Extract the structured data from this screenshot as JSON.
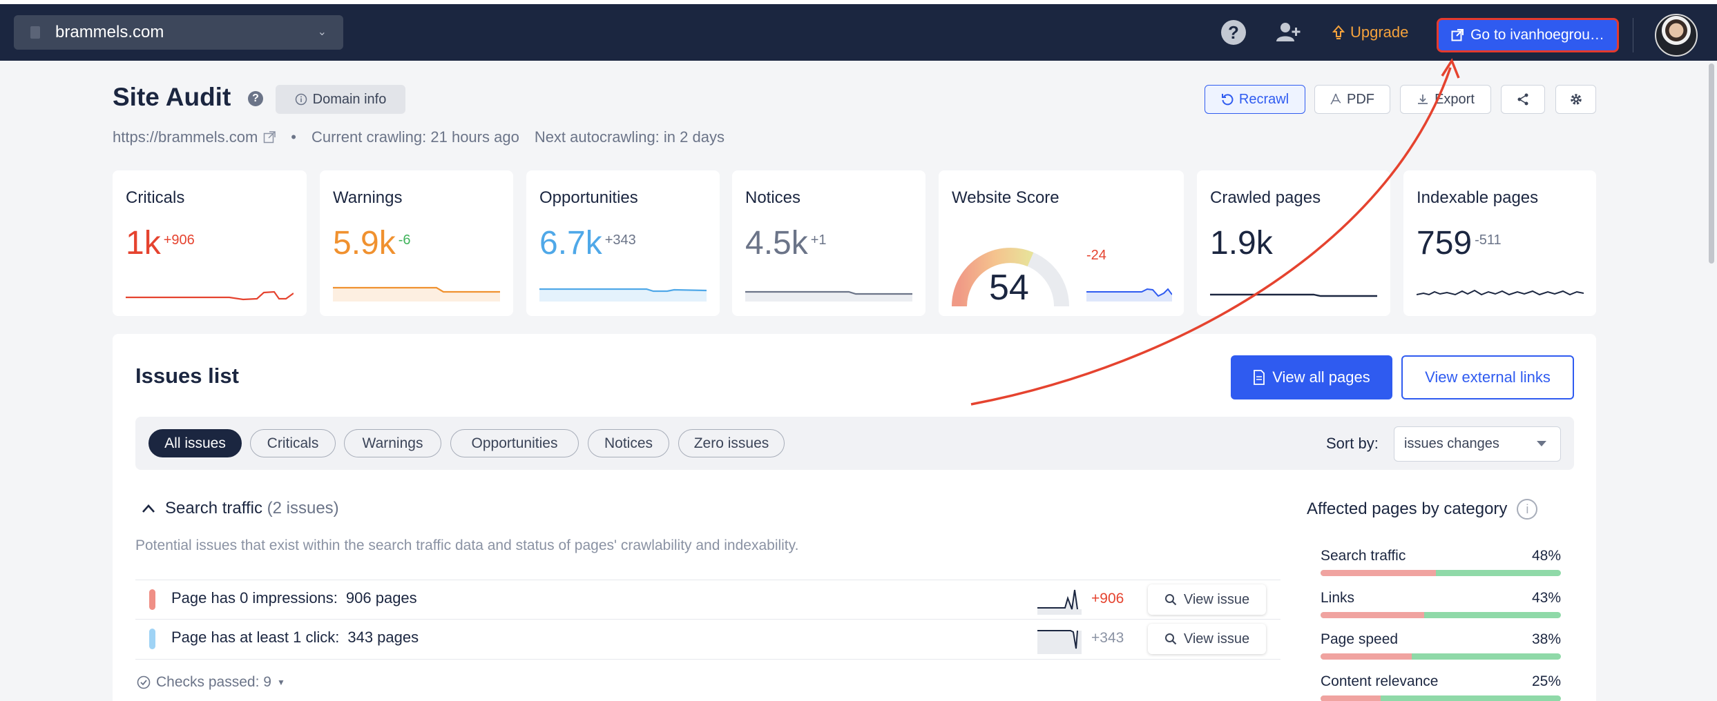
{
  "topbar": {
    "site_name": "brammels.com",
    "upgrade_label": "Upgrade",
    "goto_label": "Go to ivanhoegrou…"
  },
  "header": {
    "title": "Site Audit",
    "domain_info_label": "Domain info",
    "site_url": "https://brammels.com",
    "current_crawling": "Current crawling: 21 hours ago",
    "next_autocrawling": "Next autocrawling: in 2 days",
    "bullet": "•"
  },
  "actions": {
    "recrawl": "Recrawl",
    "pdf": "PDF",
    "export": "Export"
  },
  "cards": [
    {
      "title": "Criticals",
      "value": "1k",
      "delta": "+906",
      "color": "#e5432f"
    },
    {
      "title": "Warnings",
      "value": "5.9k",
      "delta": "-6",
      "color": "#f0912f",
      "delta_color": "#3fb35b"
    },
    {
      "title": "Opportunities",
      "value": "6.7k",
      "delta": "+343",
      "color": "#4fa8e8"
    },
    {
      "title": "Notices",
      "value": "4.5k",
      "delta": "+1",
      "color": "#6b7488"
    },
    {
      "title": "Website Score",
      "value": "54",
      "delta": "-24",
      "color": "#1b2640"
    },
    {
      "title": "Crawled pages",
      "value": "1.9k",
      "delta": "",
      "color": "#1b2640"
    },
    {
      "title": "Indexable pages",
      "value": "759",
      "delta": "-511",
      "color": "#1b2640"
    }
  ],
  "issues": {
    "title": "Issues list",
    "view_all_label": "View all pages",
    "view_external_label": "View external links",
    "filters": [
      "All issues",
      "Criticals",
      "Warnings",
      "Opportunities",
      "Notices",
      "Zero issues"
    ],
    "sort_label": "Sort by:",
    "sort_value": "issues changes",
    "section": {
      "name": "Search traffic",
      "count": "(2 issues)",
      "description": "Potential issues that exist within the search traffic data and status of pages' crawlability and indexability."
    },
    "rows": [
      {
        "label": "Page has 0 impressions:",
        "pages": "906 pages",
        "delta": "+906",
        "bar_color": "#ef8f86",
        "delta_color": "#e5432f"
      },
      {
        "label": "Page has at least 1 click:",
        "pages": "343 pages",
        "delta": "+343",
        "bar_color": "#9fd3f5",
        "delta_color": "#8a92a3"
      }
    ],
    "view_issue_label": "View issue",
    "checks_passed": "Checks passed: 9"
  },
  "affected": {
    "title": "Affected pages by category",
    "categories": [
      {
        "name": "Search traffic",
        "pct": "48%",
        "value": 48
      },
      {
        "name": "Links",
        "pct": "43%",
        "value": 43
      },
      {
        "name": "Page speed",
        "pct": "38%",
        "value": 38
      },
      {
        "name": "Content relevance",
        "pct": "25%",
        "value": 25
      }
    ]
  }
}
